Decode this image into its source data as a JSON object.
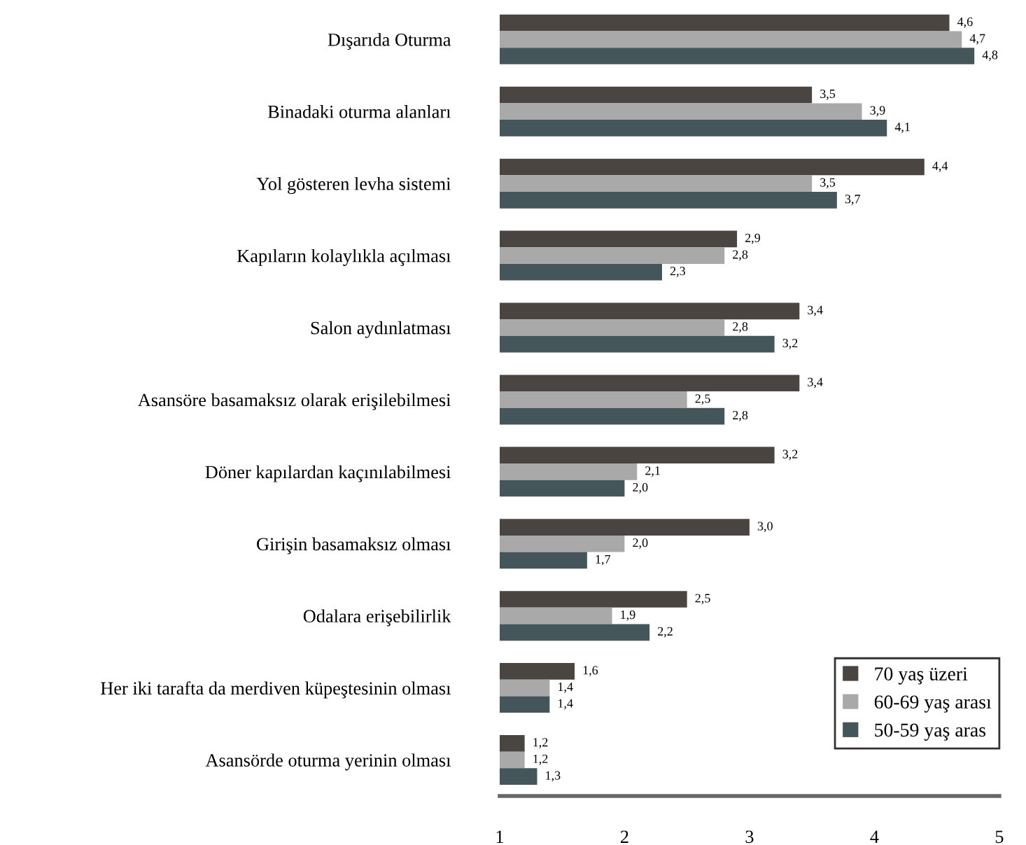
{
  "chart_data": {
    "type": "bar",
    "orientation": "horizontal",
    "categories": [
      "Dışarıda Oturma",
      "Binadaki oturma alanları",
      "Yol gösteren levha sistemi",
      "Kapıların kolaylıkla açılması",
      "Salon aydınlatması",
      "Asansöre basamaksız olarak erişilebilmesi",
      "Döner kapılardan kaçınılabilmesi",
      "Girişin basamaksız olması",
      "Odalara erişebilirlik",
      "Her iki tarafta da merdiven küpeştesinin olması",
      "Asansörde oturma yerinin olması"
    ],
    "series": [
      {
        "name": "70 yaş üzeri",
        "color": "#4a4540",
        "values": [
          4.6,
          3.5,
          4.4,
          2.9,
          3.4,
          3.4,
          3.2,
          3.0,
          2.5,
          1.6,
          1.2
        ],
        "value_labels": [
          "4,6",
          "3,5",
          "4,4",
          "2,9",
          "3,4",
          "3,4",
          "3,2",
          "3,0",
          "2,5",
          "1,6",
          "1,2"
        ]
      },
      {
        "name": "60-69 yaş arası",
        "color": "#a9a9a9",
        "values": [
          4.7,
          3.9,
          3.5,
          2.8,
          2.8,
          2.5,
          2.1,
          2.0,
          1.9,
          1.4,
          1.2
        ],
        "value_labels": [
          "4,7",
          "3,9",
          "3,5",
          "2,8",
          "2,8",
          "2,5",
          "2,1",
          "2,0",
          "1,9",
          "1,4",
          "1,2"
        ]
      },
      {
        "name": "50-59 yaş aras",
        "color": "#44565a",
        "values": [
          4.8,
          4.1,
          3.7,
          2.3,
          3.2,
          2.8,
          2.0,
          1.7,
          2.2,
          1.4,
          1.3
        ],
        "value_labels": [
          "4,8",
          "4,1",
          "3,7",
          "2,3",
          "3,2",
          "2,8",
          "2,0",
          "1,7",
          "2,2",
          "1,4",
          "1,3"
        ]
      }
    ],
    "xlim": [
      1,
      5
    ],
    "xticks": [
      1,
      2,
      3,
      4,
      5
    ],
    "grid": false,
    "legend": "bottom right"
  }
}
